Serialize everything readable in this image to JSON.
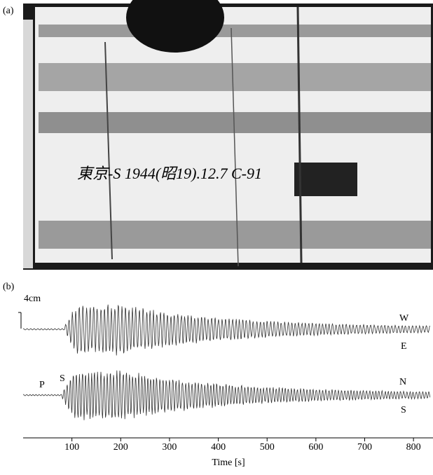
{
  "figure": {
    "panel_a": {
      "label": "(a)",
      "annotation": "東京-S 1944(昭19).12.7 C-91"
    },
    "panel_b": {
      "label": "(b)",
      "scale_bar": "4cm",
      "traces": {
        "top_upper": "W",
        "top_lower": "E",
        "phase_p": "P",
        "phase_s": "S",
        "bottom_upper": "N",
        "bottom_lower": "S"
      },
      "xlabel": "Time [s]",
      "xlim": [
        0,
        840
      ],
      "xticks": [
        100,
        200,
        300,
        400,
        500,
        600,
        700,
        800
      ]
    }
  }
}
